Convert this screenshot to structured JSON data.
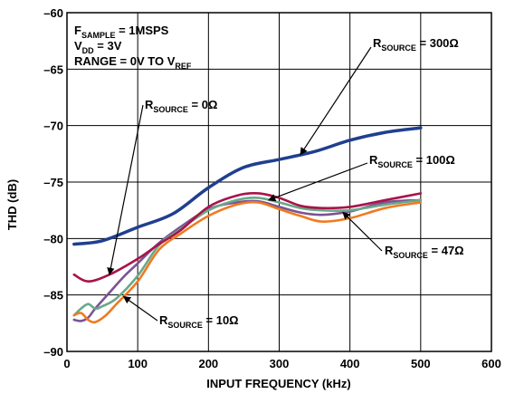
{
  "chart_data": {
    "type": "line",
    "xlabel": "INPUT FREQUENCY (kHz)",
    "ylabel": "THD (dB)",
    "xlim": [
      0,
      600
    ],
    "ylim": [
      -90,
      -60
    ],
    "xticks": [
      "0",
      "100",
      "200",
      "300",
      "400",
      "500",
      "600"
    ],
    "yticks": [
      "–60",
      "–65",
      "–70",
      "–75",
      "–80",
      "–85",
      "–90"
    ],
    "grid": true,
    "conditions": {
      "line1": {
        "main": "F",
        "sub": "SAMPLE",
        "rest": " = 1MSPS"
      },
      "line2": {
        "main": "V",
        "sub": "DD",
        "rest": " = 3V"
      },
      "line3": {
        "main": "RANGE = 0V TO V",
        "sub": "REF",
        "rest": ""
      }
    },
    "series": [
      {
        "name": "RSOURCE = 300Ω",
        "color": "#1f3f8f",
        "x": [
          10,
          50,
          100,
          150,
          200,
          250,
          300,
          350,
          400,
          450,
          500
        ],
        "y": [
          -80.5,
          -80.2,
          -79.0,
          -77.8,
          -75.5,
          -73.7,
          -73.0,
          -72.3,
          -71.3,
          -70.6,
          -70.2
        ]
      },
      {
        "name": "RSOURCE = 0Ω",
        "color": "#a8144a",
        "x": [
          10,
          30,
          60,
          100,
          130,
          160,
          200,
          240,
          270,
          300,
          330,
          360,
          400,
          450,
          500
        ],
        "y": [
          -83.2,
          -83.8,
          -83.2,
          -81.8,
          -80.5,
          -79.3,
          -77.2,
          -76.2,
          -76.0,
          -76.4,
          -77.1,
          -77.3,
          -77.2,
          -76.6,
          -76.0
        ]
      },
      {
        "name": "RSOURCE = 100Ω",
        "color": "#6aa889",
        "x": [
          10,
          20,
          30,
          40,
          50,
          70,
          100,
          130,
          160,
          200,
          240,
          270,
          300,
          330,
          360,
          400,
          450,
          500
        ],
        "y": [
          -86.8,
          -86.2,
          -85.8,
          -86.2,
          -86.0,
          -85.3,
          -83.3,
          -80.6,
          -79.2,
          -77.5,
          -76.6,
          -76.4,
          -76.8,
          -77.3,
          -77.5,
          -77.5,
          -77.0,
          -76.6
        ]
      },
      {
        "name": "RSOURCE = 47Ω",
        "color": "#7b5394",
        "x": [
          10,
          20,
          30,
          40,
          60,
          80,
          100,
          130,
          160,
          200,
          240,
          270,
          300,
          330,
          360,
          400,
          450,
          500
        ],
        "y": [
          -87.2,
          -87.3,
          -87.0,
          -86.2,
          -84.8,
          -83.4,
          -82.2,
          -80.4,
          -79.0,
          -77.4,
          -76.8,
          -76.7,
          -77.2,
          -77.7,
          -77.9,
          -77.6,
          -76.8,
          -76.6
        ]
      },
      {
        "name": "RSOURCE = 10Ω",
        "color": "#f07a1f",
        "x": [
          10,
          20,
          30,
          40,
          55,
          70,
          100,
          130,
          160,
          200,
          240,
          270,
          300,
          330,
          360,
          400,
          450,
          500
        ],
        "y": [
          -86.8,
          -86.6,
          -87.2,
          -87.4,
          -86.8,
          -85.8,
          -83.8,
          -81.0,
          -79.6,
          -78.0,
          -77.0,
          -76.8,
          -77.4,
          -78.0,
          -78.5,
          -78.2,
          -77.3,
          -76.8
        ]
      }
    ],
    "annotations": [
      {
        "main": "R",
        "sub": "SOURCE",
        "rest": " = 300Ω",
        "series": 0,
        "at_x": 330
      },
      {
        "main": "R",
        "sub": "SOURCE",
        "rest": " = 0Ω",
        "series": 1,
        "at_x": 60
      },
      {
        "main": "R",
        "sub": "SOURCE",
        "rest": " = 100Ω",
        "series": 2,
        "at_x": 285
      },
      {
        "main": "R",
        "sub": "SOURCE",
        "rest": " = 47Ω",
        "series": 3,
        "at_x": 390
      },
      {
        "main": "R",
        "sub": "SOURCE",
        "rest": " = 10Ω",
        "series": 4,
        "at_x": 80
      }
    ]
  }
}
